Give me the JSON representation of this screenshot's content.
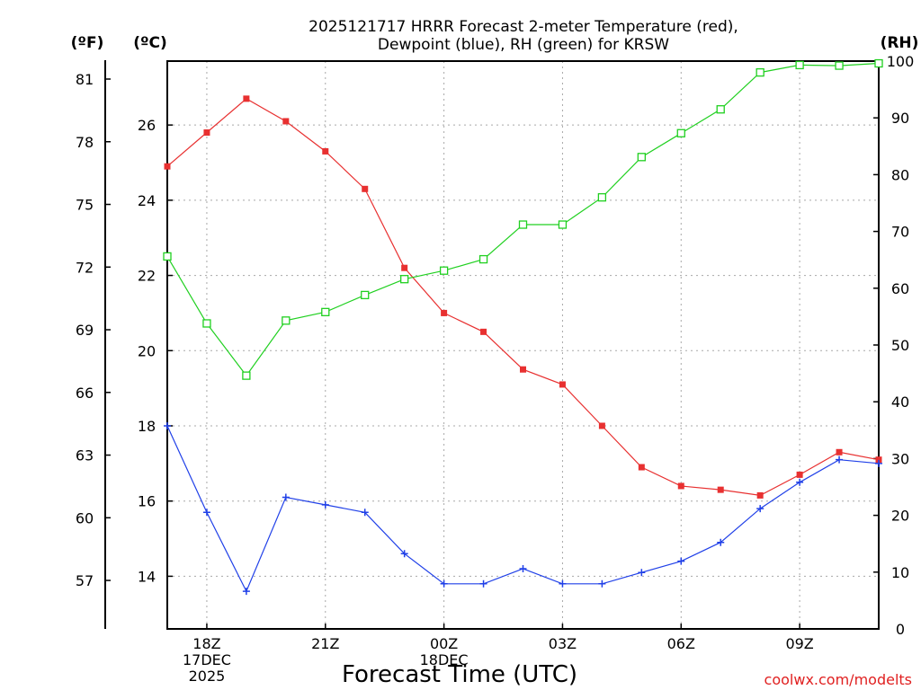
{
  "chart_data": {
    "type": "line",
    "title_lines": [
      "2025121717 HRRR Forecast 2-meter Temperature (red),",
      "Dewpoint (blue), RH (green) for KRSW"
    ],
    "xlabel": "Forecast Time (UTC)",
    "credit": "coolwx.com/modelts",
    "units": {
      "fahrenheit": "(ºF)",
      "celsius": "(ºC)",
      "rh": "(RH)"
    },
    "x_hours": [
      17,
      18,
      19,
      20,
      21,
      22,
      23,
      24,
      25,
      26,
      27,
      28,
      29,
      30,
      31,
      32,
      33,
      34,
      35
    ],
    "xlim": [
      17,
      35
    ],
    "x_ticks": [
      {
        "h": 18,
        "lines": [
          "18Z",
          "17DEC",
          "2025"
        ]
      },
      {
        "h": 21,
        "lines": [
          "21Z"
        ]
      },
      {
        "h": 24,
        "lines": [
          "00Z",
          "18DEC"
        ]
      },
      {
        "h": 27,
        "lines": [
          "03Z"
        ]
      },
      {
        "h": 30,
        "lines": [
          "06Z"
        ]
      },
      {
        "h": 33,
        "lines": [
          "09Z"
        ]
      }
    ],
    "celsius_axis": {
      "ylim": [
        12.6,
        27.7
      ],
      "ticks": [
        14,
        16,
        18,
        20,
        22,
        24,
        26
      ]
    },
    "fahrenheit_ticks": [
      57,
      60,
      63,
      66,
      69,
      72,
      75,
      78,
      81
    ],
    "rh_axis": {
      "ylim": [
        0,
        100
      ],
      "ticks": [
        0,
        10,
        20,
        30,
        40,
        50,
        60,
        70,
        80,
        90,
        100
      ]
    },
    "series": [
      {
        "name": "Temperature",
        "axis": "celsius",
        "color": "#e83030",
        "marker": "filled-square",
        "values": [
          24.9,
          25.8,
          26.7,
          26.1,
          25.3,
          24.3,
          22.2,
          21.0,
          20.5,
          19.5,
          19.1,
          18.0,
          16.9,
          16.4,
          16.3,
          16.15,
          16.7,
          17.3,
          17.1
        ]
      },
      {
        "name": "Dewpoint",
        "axis": "celsius",
        "color": "#2040e8",
        "marker": "plus",
        "values": [
          18.0,
          15.7,
          13.6,
          16.1,
          15.9,
          15.7,
          14.6,
          13.8,
          13.8,
          14.2,
          13.8,
          13.8,
          14.1,
          14.4,
          14.9,
          15.8,
          16.5,
          17.1,
          17.0
        ]
      },
      {
        "name": "RH",
        "axis": "rh",
        "color": "#20d020",
        "marker": "open-square",
        "values": [
          65.6,
          53.8,
          44.6,
          54.3,
          55.8,
          58.8,
          61.6,
          63.1,
          65.1,
          71.2,
          71.2,
          76.0,
          83.1,
          87.3,
          91.5,
          98.0,
          99.3,
          99.2,
          99.6
        ]
      }
    ]
  }
}
